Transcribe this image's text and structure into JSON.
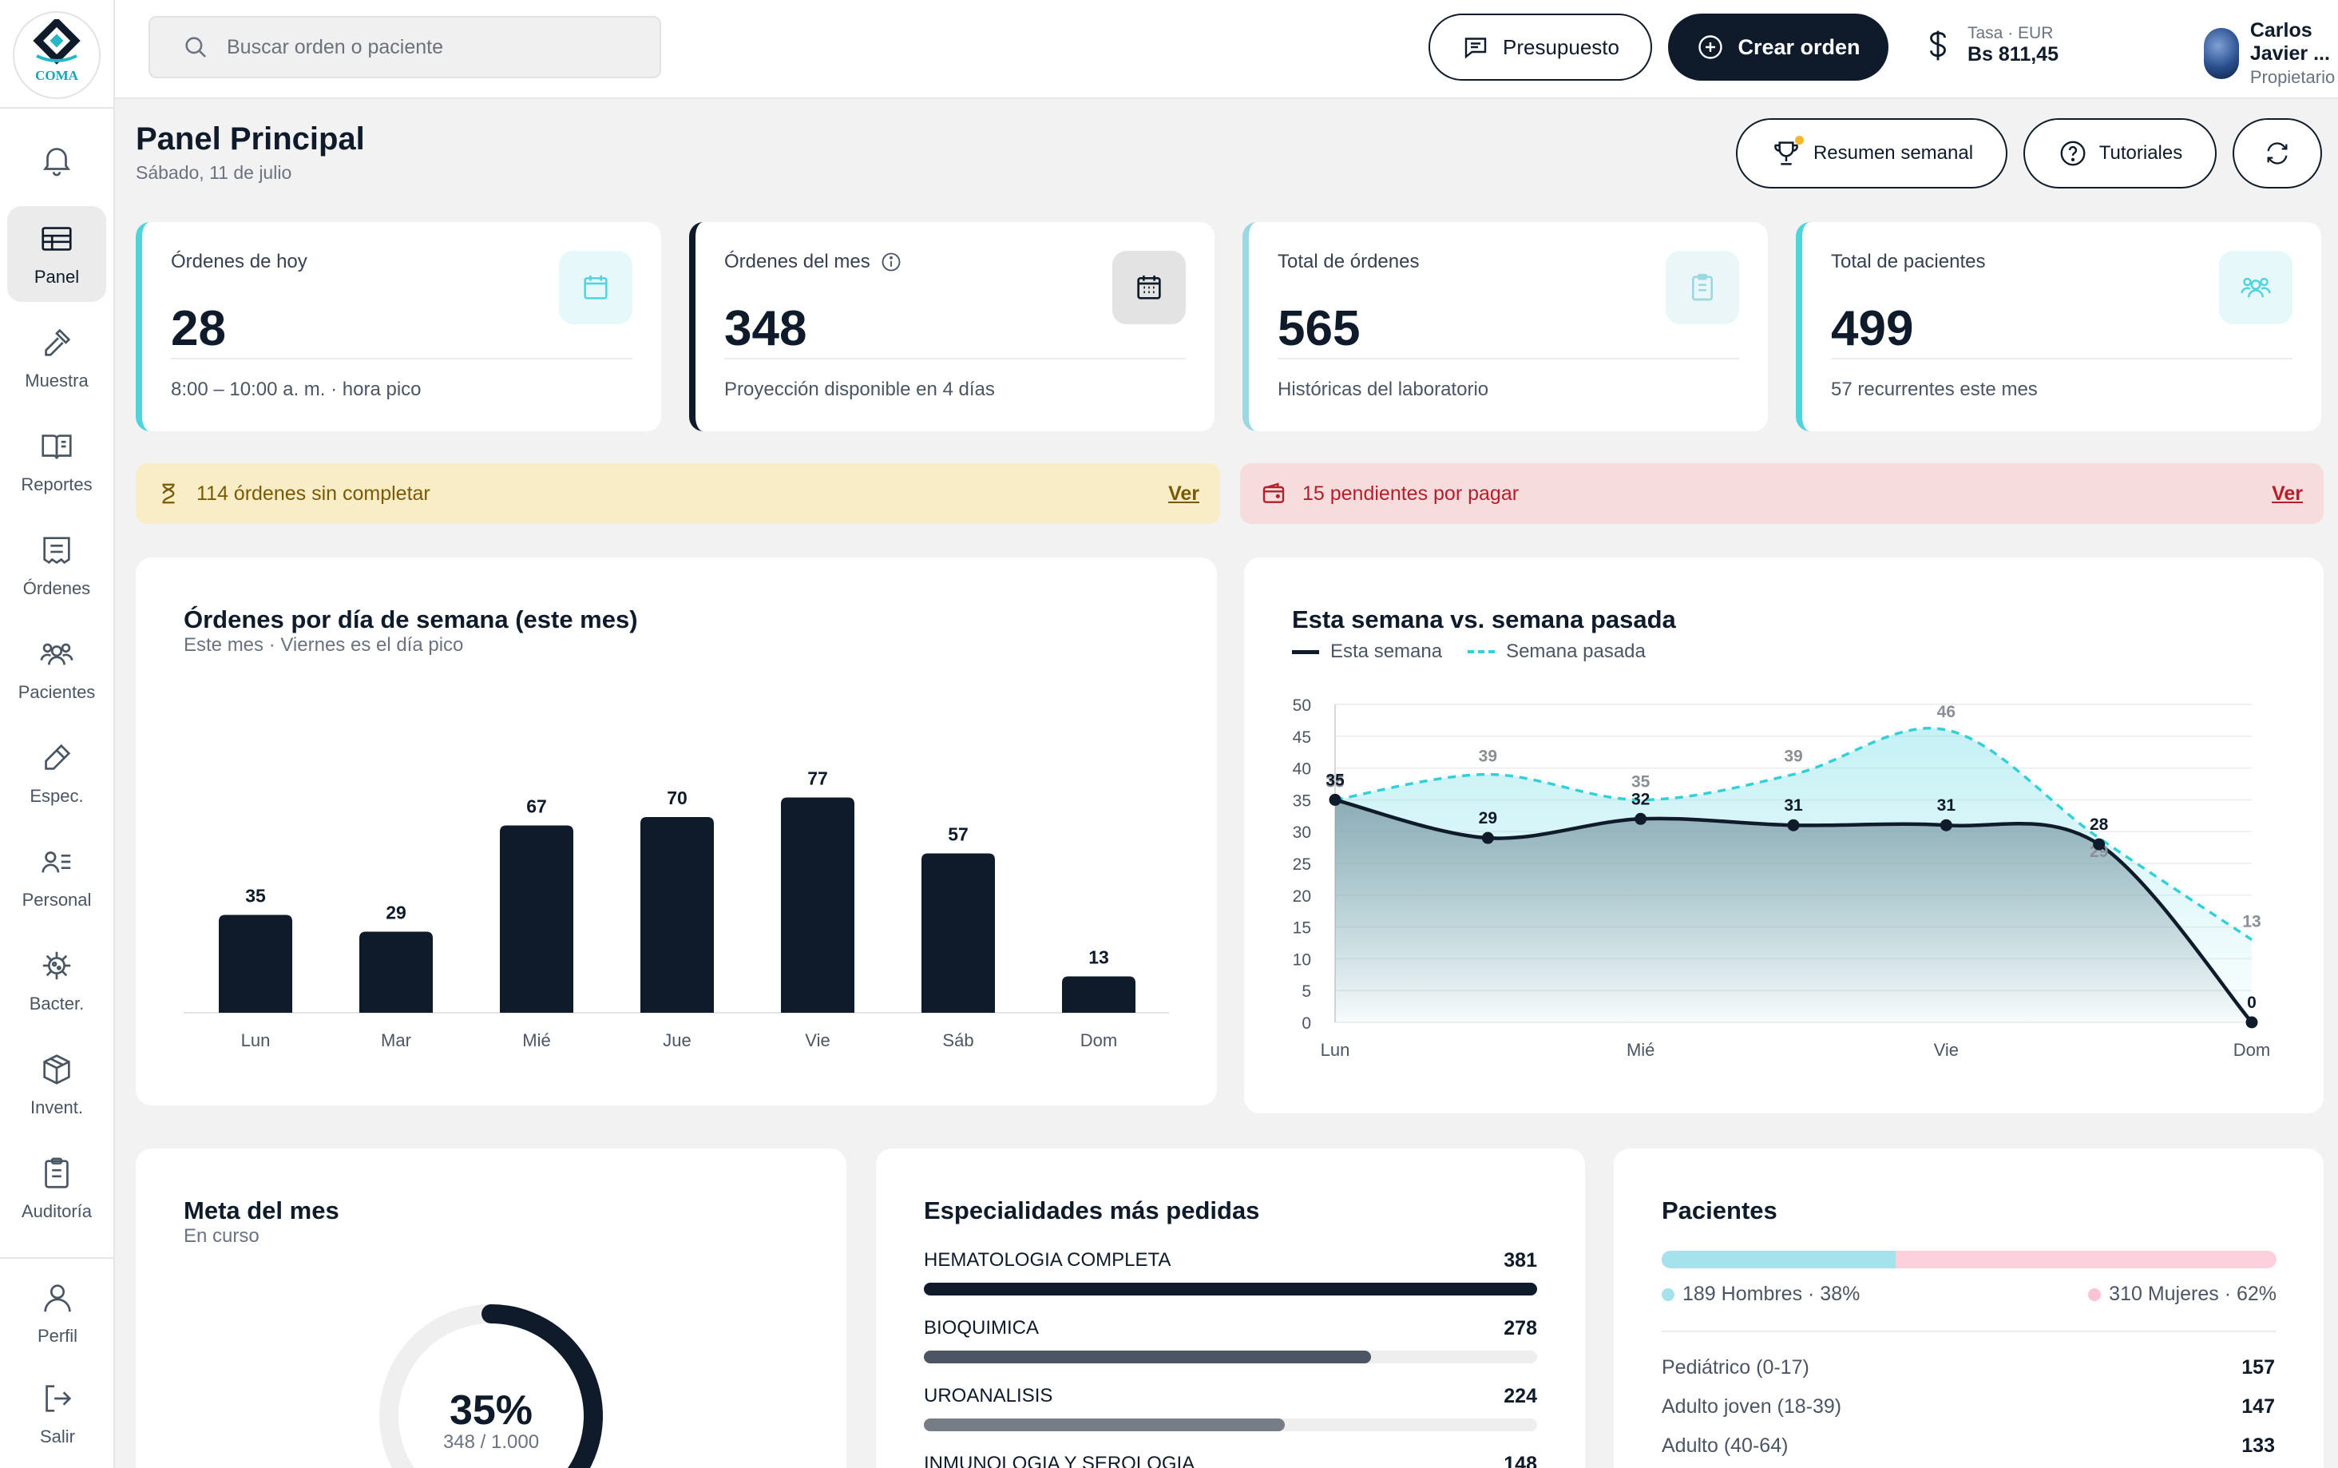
{
  "app": {
    "logo_text": "COMA"
  },
  "sidebar": {
    "items": [
      {
        "label": "",
        "icon": "bell-icon"
      },
      {
        "label": "Panel",
        "icon": "table-icon"
      },
      {
        "label": "Muestra",
        "icon": "dropper-icon"
      },
      {
        "label": "Reportes",
        "icon": "book-icon"
      },
      {
        "label": "Órdenes",
        "icon": "receipt-icon"
      },
      {
        "label": "Pacientes",
        "icon": "users-icon"
      },
      {
        "label": "Espec.",
        "icon": "pencil-icon"
      },
      {
        "label": "Personal",
        "icon": "user-list-icon"
      },
      {
        "label": "Bacter.",
        "icon": "bacteria-icon"
      },
      {
        "label": "Invent.",
        "icon": "box-icon"
      },
      {
        "label": "Auditoría",
        "icon": "clipboard-icon"
      }
    ],
    "bottom": [
      {
        "label": "Perfil",
        "icon": "user-icon"
      },
      {
        "label": "Salir",
        "icon": "logout-icon"
      }
    ]
  },
  "topbar": {
    "search_placeholder": "Buscar orden o paciente",
    "budget_label": "Presupuesto",
    "create_label": "Crear orden",
    "rate_label": "Tasa · EUR",
    "rate_value": "Bs 811,45",
    "user_name": "Carlos Javier ...",
    "user_role": "Propietario"
  },
  "header": {
    "title": "Panel Principal",
    "date": "Sábado, 11 de julio",
    "weekly_label": "Resumen semanal",
    "tutorials_label": "Tutoriales"
  },
  "stats": [
    {
      "title": "Órdenes de hoy",
      "value": "28",
      "sub": "8:00 – 10:00 a. m. · hora pico"
    },
    {
      "title": "Órdenes del mes",
      "value": "348",
      "sub": "Proyección disponible en 4 días"
    },
    {
      "title": "Total de órdenes",
      "value": "565",
      "sub": "Históricas del laboratorio"
    },
    {
      "title": "Total de pacientes",
      "value": "499",
      "sub": "57 recurrentes este mes"
    }
  ],
  "alerts": {
    "incomplete": {
      "text": "114 órdenes sin completar",
      "link": "Ver"
    },
    "unpaid": {
      "text": "15 pendientes por pagar",
      "link": "Ver"
    }
  },
  "colors": {
    "dark": "#0f1b2a",
    "accent": "#4fd3dc",
    "warn_bg": "#f8edc7",
    "warn_fg": "#7a5a00",
    "danger_bg": "#f6dcdd",
    "danger_fg": "#b3202b"
  },
  "chart_data": [
    {
      "type": "bar",
      "title": "Órdenes por día de semana (este mes)",
      "subtitle": "Este mes · Viernes es el día pico",
      "categories": [
        "Lun",
        "Mar",
        "Mié",
        "Jue",
        "Vie",
        "Sáb",
        "Dom"
      ],
      "values": [
        35,
        29,
        67,
        70,
        77,
        57,
        13
      ]
    },
    {
      "type": "line",
      "title": "Esta semana vs. semana pasada",
      "x_tick_labels": [
        "Lun",
        "Mié",
        "Vie",
        "Dom"
      ],
      "categories": [
        "Lun",
        "Mar",
        "Mié",
        "Jue",
        "Vie",
        "Sáb",
        "Dom"
      ],
      "ylim": [
        0,
        50
      ],
      "yticks": [
        0,
        5,
        10,
        15,
        20,
        25,
        30,
        35,
        40,
        45,
        50
      ],
      "series": [
        {
          "name": "Esta semana",
          "values": [
            35,
            29,
            32,
            31,
            31,
            28,
            0
          ]
        },
        {
          "name": "Semana pasada",
          "values": [
            35,
            39,
            35,
            39,
            46,
            29,
            13
          ]
        }
      ]
    }
  ],
  "goal": {
    "title": "Meta del mes",
    "sub": "En curso",
    "percent_label": "35%",
    "progress_label": "348 / 1.000",
    "fraction": 0.348
  },
  "specialties": {
    "title": "Especialidades más pedidas",
    "items": [
      {
        "name": "HEMATOLOGIA COMPLETA",
        "count": 381
      },
      {
        "name": "BIOQUIMICA",
        "count": 278
      },
      {
        "name": "UROANALISIS",
        "count": 224
      },
      {
        "name": "INMUNOLOGIA Y SEROLOGIA",
        "count": 148
      }
    ]
  },
  "patients": {
    "title": "Pacientes",
    "men_label": "189 Hombres · 38%",
    "women_label": "310 Mujeres · 62%",
    "men_fraction": 0.38,
    "ages": [
      {
        "label": "Pediátrico (0-17)",
        "count": "157"
      },
      {
        "label": "Adulto joven (18-39)",
        "count": "147"
      },
      {
        "label": "Adulto (40-64)",
        "count": "133"
      }
    ]
  }
}
